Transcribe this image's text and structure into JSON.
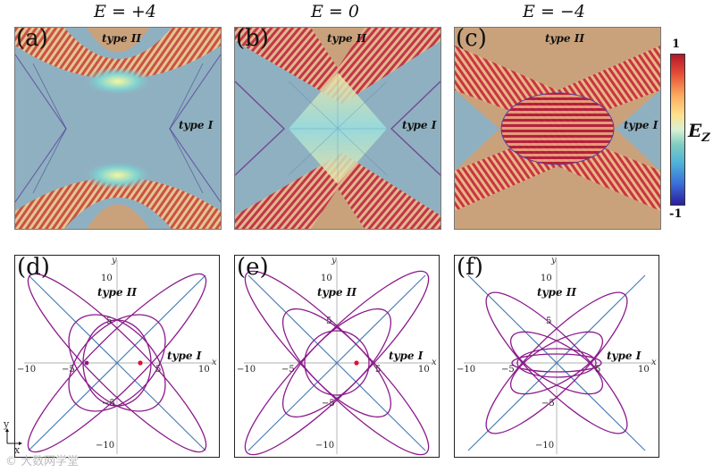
{
  "titles": [
    "E = +4",
    "E = 0",
    "E = −4"
  ],
  "top_panels": [
    {
      "tag": "(a)",
      "type_ii": "type II",
      "type_i": "type I"
    },
    {
      "tag": "(b)",
      "type_ii": "type II",
      "type_i": "type I"
    },
    {
      "tag": "(c)",
      "type_ii": "type II",
      "type_i": "type I"
    }
  ],
  "bottom_panels": [
    {
      "tag": "(d)",
      "type_ii": "type II",
      "type_i": "type I",
      "x_label": "x",
      "y_label": "y",
      "x_ticks": [
        "−10",
        "−5",
        "5",
        "10"
      ],
      "y_ticks": [
        "10",
        "5",
        "−5",
        "−10"
      ]
    },
    {
      "tag": "(e)",
      "type_ii": "type II",
      "type_i": "type I",
      "x_label": "x",
      "y_label": "y",
      "x_ticks": [
        "−10",
        "−5",
        "5",
        "10"
      ],
      "y_ticks": [
        "10",
        "5",
        "−5",
        "−10"
      ]
    },
    {
      "tag": "(f)",
      "type_ii": "type II",
      "type_i": "type I",
      "x_label": "x",
      "y_label": "y",
      "x_ticks": [
        "−10",
        "−5",
        "5",
        "10"
      ],
      "y_ticks": [
        "10",
        "5",
        "−5",
        "−10"
      ]
    }
  ],
  "colorbar": {
    "max": "1",
    "min": "-1",
    "label": "E",
    "label_sub": "Z"
  },
  "corner_axes": {
    "y": "y",
    "x": "x"
  },
  "watermark": "© 大数网学堂",
  "colors": {
    "ellipse": "#8b1a8b",
    "line": "#4a7fb5",
    "point": "#e0102f",
    "tile_bg": "#8fb0c0",
    "tile_fan": "#c9a27c"
  }
}
